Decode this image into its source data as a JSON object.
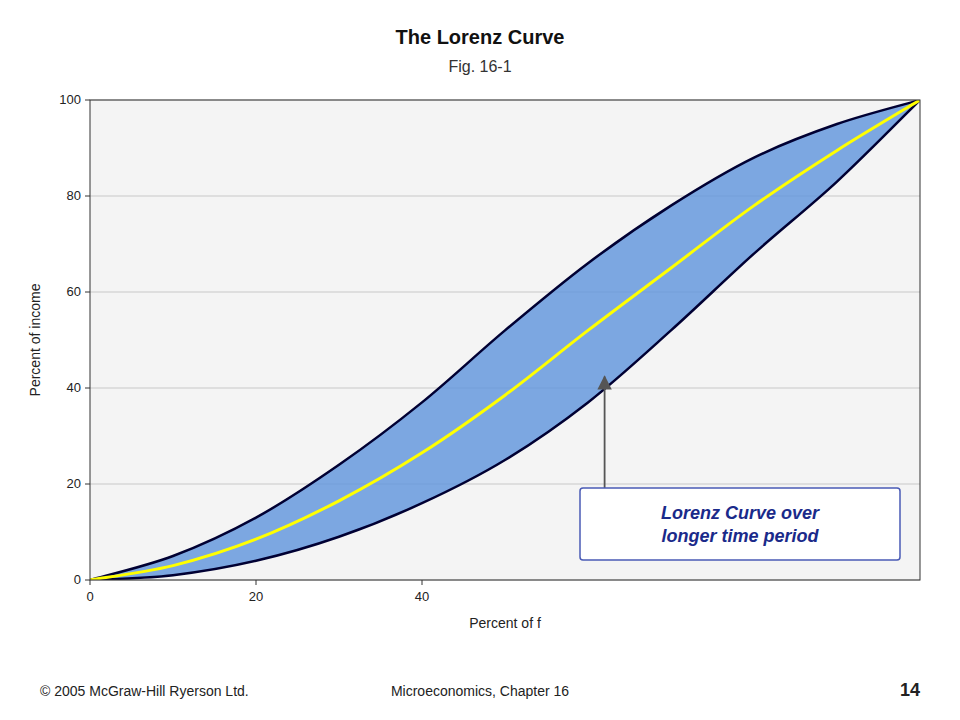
{
  "chart_data": {
    "type": "line",
    "title": "The Lorenz Curve",
    "subtitle": "Fig. 16-1",
    "x_label": "Percent of f",
    "y_label": "Percent of income",
    "x": [
      0,
      10,
      20,
      30,
      40,
      50,
      60,
      70,
      80,
      90,
      100
    ],
    "series": [
      {
        "color": "#000033",
        "values": [
          0,
          1.0,
          4.0,
          9.0,
          16.0,
          25.0,
          37.0,
          52.0,
          68.0,
          83.0,
          100
        ]
      },
      {
        "color": "#000033",
        "values": [
          0,
          5.0,
          13.0,
          24.0,
          37.0,
          52.0,
          66.0,
          78.0,
          88.0,
          95.0,
          100
        ]
      },
      {
        "color": "#FFFF00",
        "values": [
          0,
          3.0,
          8.5,
          16.5,
          26.5,
          38.5,
          52.0,
          65.0,
          78.0,
          89.5,
          100
        ]
      }
    ],
    "color": "#6699DD",
    "xlim": [
      0,
      100
    ],
    "ylim": [
      0,
      100
    ],
    "xticks": [
      0,
      20,
      40
    ],
    "yticks": [
      0,
      20,
      40,
      60,
      80,
      100
    ],
    "grid": "y",
    "annotations": [
      {
        "text": "Lorenz Curve over\nlonger time period",
        "x": 62,
        "y": 43
      },
      {
        "text": "© 2005 McGraw-Hill Ryerson Ltd."
      },
      {
        "text": "Microeconomics, Chapter 16"
      },
      {
        "text": "14"
      }
    ]
  }
}
